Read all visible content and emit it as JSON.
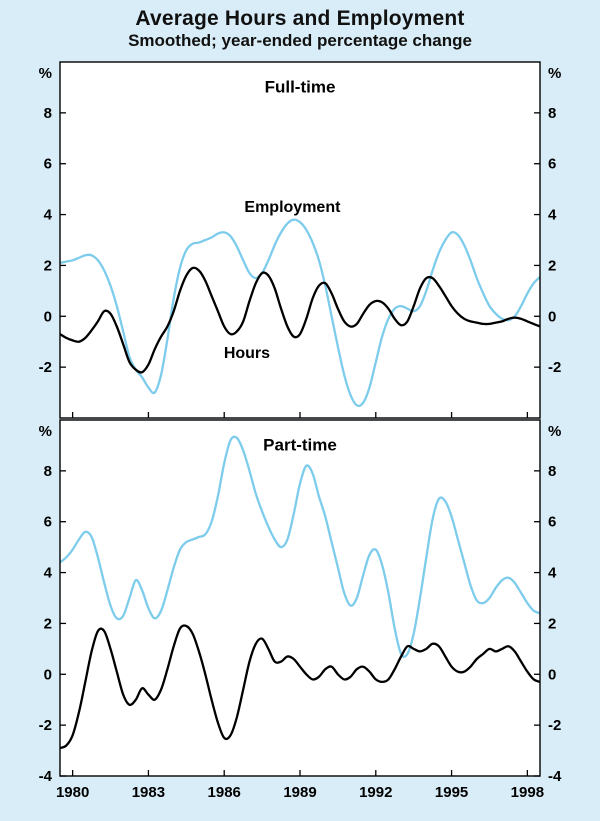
{
  "header": {
    "title": "Average Hours and Employment",
    "subtitle": "Smoothed; year-ended percentage change"
  },
  "colors": {
    "background": "#d9edf8",
    "panel": "#ffffff",
    "axis": "#000000",
    "employment_line": "#7dccec",
    "hours_line": "#000000"
  },
  "chart_data": [
    {
      "type": "line",
      "panel_title": "Full-time",
      "xlim": [
        1979.5,
        1998.5
      ],
      "ylim": [
        -4,
        10
      ],
      "unit_label": "%",
      "grid": false,
      "legend_position": "in-chart-annotations",
      "y_tick_labels": [
        8,
        6,
        4,
        2,
        0,
        -2
      ],
      "x_tick_years": [
        1980,
        1983,
        1986,
        1989,
        1992,
        1995,
        1998
      ],
      "x_tick_labels": [
        "1980",
        "1983",
        "1986",
        "1989",
        "1992",
        "1995",
        "1998"
      ],
      "show_x_tick_labels": false,
      "annotations": [
        {
          "text": "Full-time",
          "x": 1989.0,
          "y": 9.0,
          "size": 17
        },
        {
          "text": "Employment",
          "x": 1988.7,
          "y": 4.3,
          "size": 16
        },
        {
          "text": "Hours",
          "x": 1986.9,
          "y": -1.45,
          "size": 16
        }
      ],
      "x_start": 1979.5,
      "x_step": 0.25,
      "series": [
        {
          "name": "Employment",
          "color_key": "employment_line",
          "values": [
            2.1,
            2.15,
            2.2,
            2.3,
            2.4,
            2.4,
            2.2,
            1.8,
            1.2,
            0.4,
            -0.6,
            -1.6,
            -2.1,
            -2.4,
            -2.8,
            -3.0,
            -2.3,
            -0.9,
            0.7,
            1.9,
            2.6,
            2.85,
            2.9,
            3.0,
            3.1,
            3.25,
            3.3,
            3.15,
            2.75,
            2.2,
            1.7,
            1.5,
            1.7,
            2.2,
            2.8,
            3.3,
            3.65,
            3.8,
            3.7,
            3.4,
            2.9,
            2.2,
            1.2,
            0.0,
            -1.2,
            -2.3,
            -3.1,
            -3.5,
            -3.4,
            -2.8,
            -1.8,
            -0.8,
            -0.1,
            0.3,
            0.4,
            0.3,
            0.2,
            0.4,
            1.0,
            1.8,
            2.5,
            3.0,
            3.3,
            3.2,
            2.8,
            2.2,
            1.5,
            0.9,
            0.4,
            0.1,
            -0.1,
            -0.15,
            0.0,
            0.4,
            0.9,
            1.3,
            1.55
          ]
        },
        {
          "name": "Hours",
          "color_key": "hours_line",
          "values": [
            -0.7,
            -0.85,
            -0.95,
            -1.0,
            -0.85,
            -0.55,
            -0.2,
            0.2,
            0.1,
            -0.4,
            -1.1,
            -1.8,
            -2.1,
            -2.2,
            -1.9,
            -1.3,
            -0.8,
            -0.4,
            0.2,
            1.0,
            1.6,
            1.9,
            1.8,
            1.4,
            0.8,
            0.2,
            -0.4,
            -0.7,
            -0.6,
            -0.2,
            0.6,
            1.3,
            1.7,
            1.6,
            1.1,
            0.3,
            -0.4,
            -0.8,
            -0.7,
            -0.1,
            0.7,
            1.2,
            1.3,
            0.9,
            0.3,
            -0.2,
            -0.4,
            -0.3,
            0.1,
            0.45,
            0.6,
            0.55,
            0.3,
            -0.1,
            -0.35,
            -0.2,
            0.4,
            1.1,
            1.5,
            1.5,
            1.2,
            0.8,
            0.4,
            0.1,
            -0.1,
            -0.2,
            -0.25,
            -0.3,
            -0.3,
            -0.25,
            -0.2,
            -0.1,
            -0.05,
            -0.1,
            -0.2,
            -0.3,
            -0.4
          ]
        }
      ]
    },
    {
      "type": "line",
      "panel_title": "Part-time",
      "xlim": [
        1979.5,
        1998.5
      ],
      "ylim": [
        -4,
        10
      ],
      "unit_label": "%",
      "grid": false,
      "legend_position": "in-chart-annotations",
      "y_tick_labels": [
        8,
        6,
        4,
        2,
        0,
        -2,
        -4
      ],
      "x_tick_years": [
        1980,
        1983,
        1986,
        1989,
        1992,
        1995,
        1998
      ],
      "x_tick_labels": [
        "1980",
        "1983",
        "1986",
        "1989",
        "1992",
        "1995",
        "1998"
      ],
      "show_x_tick_labels": true,
      "annotations": [
        {
          "text": "Part-time",
          "x": 1989.0,
          "y": 9.0,
          "size": 17
        }
      ],
      "x_start": 1979.5,
      "x_step": 0.25,
      "series": [
        {
          "name": "Employment",
          "color_key": "employment_line",
          "values": [
            4.4,
            4.6,
            4.9,
            5.3,
            5.6,
            5.4,
            4.6,
            3.6,
            2.7,
            2.2,
            2.3,
            3.0,
            3.7,
            3.3,
            2.6,
            2.2,
            2.5,
            3.3,
            4.2,
            4.9,
            5.2,
            5.3,
            5.4,
            5.5,
            6.0,
            7.0,
            8.3,
            9.2,
            9.3,
            8.8,
            8.0,
            7.1,
            6.4,
            5.8,
            5.3,
            5.0,
            5.3,
            6.3,
            7.5,
            8.2,
            7.9,
            7.0,
            6.2,
            5.2,
            4.2,
            3.2,
            2.7,
            3.0,
            3.9,
            4.7,
            4.9,
            4.3,
            3.2,
            1.8,
            0.8,
            0.8,
            1.6,
            3.0,
            4.6,
            6.1,
            6.9,
            6.8,
            6.2,
            5.3,
            4.4,
            3.5,
            2.9,
            2.8,
            3.0,
            3.4,
            3.7,
            3.8,
            3.6,
            3.2,
            2.8,
            2.5,
            2.4
          ]
        },
        {
          "name": "Hours",
          "color_key": "hours_line",
          "values": [
            -2.9,
            -2.8,
            -2.4,
            -1.5,
            -0.3,
            0.9,
            1.7,
            1.7,
            1.0,
            0.1,
            -0.8,
            -1.2,
            -1.0,
            -0.55,
            -0.8,
            -1.0,
            -0.6,
            0.2,
            1.1,
            1.8,
            1.9,
            1.6,
            0.9,
            0.0,
            -1.0,
            -1.9,
            -2.5,
            -2.4,
            -1.7,
            -0.6,
            0.5,
            1.2,
            1.4,
            1.0,
            0.5,
            0.5,
            0.7,
            0.6,
            0.3,
            0.0,
            -0.2,
            -0.1,
            0.2,
            0.3,
            0.0,
            -0.2,
            -0.1,
            0.2,
            0.3,
            0.1,
            -0.2,
            -0.3,
            -0.2,
            0.2,
            0.7,
            1.1,
            1.0,
            0.9,
            1.0,
            1.2,
            1.1,
            0.7,
            0.3,
            0.1,
            0.1,
            0.3,
            0.6,
            0.8,
            1.0,
            0.9,
            1.0,
            1.1,
            0.9,
            0.5,
            0.1,
            -0.2,
            -0.3
          ]
        }
      ]
    }
  ]
}
